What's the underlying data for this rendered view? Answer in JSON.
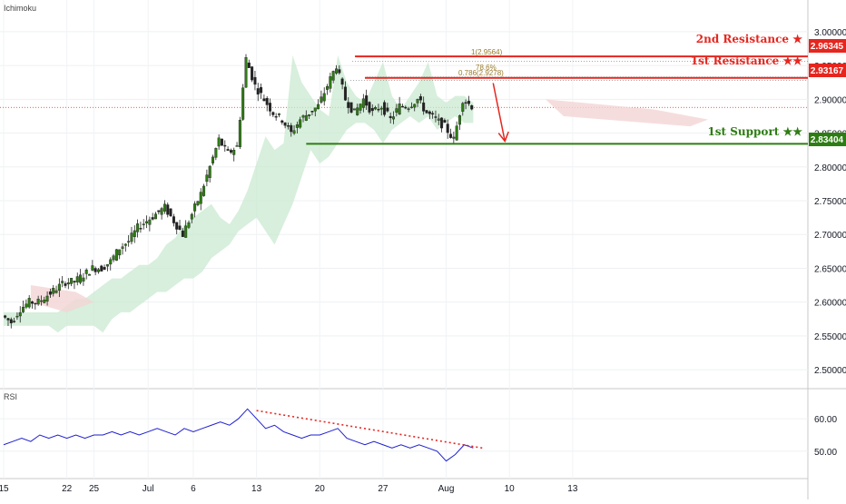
{
  "main_indicator": "Ichimoku",
  "rsi_indicator": "RSI",
  "colors": {
    "resistance": "#e5261f",
    "support": "#2e7d13",
    "candle": "#2e7d13",
    "rsi_line": "#1f1fcf",
    "cloud": "#c9ead0",
    "cloud_bear": "#f4d4d4"
  },
  "levels": {
    "r2": {
      "label": "2nd Resistance ★",
      "value_text": "2.96345",
      "value": 2.96345
    },
    "r1": {
      "label": "1st Resistance ★★",
      "value_text": "2.93167",
      "value": 2.93167
    },
    "s1": {
      "label": "1st Support ★★",
      "value_text": "2.83404",
      "value": 2.83404
    }
  },
  "fib": {
    "top_label": "1(2.9564)",
    "pct_label": "78.6%",
    "lower_label": "0.786(2.9278)"
  },
  "chart_data": [
    {
      "type": "candlestick",
      "title": "",
      "y_ticks": [
        "3.00000",
        "2.95000",
        "2.90000",
        "2.85000",
        "2.80000",
        "2.75000",
        "2.70000",
        "2.65000",
        "2.60000",
        "2.55000",
        "2.50000"
      ],
      "y_tick_values": [
        3.0,
        2.95,
        2.9,
        2.85,
        2.8,
        2.75,
        2.7,
        2.65,
        2.6,
        2.55,
        2.5
      ],
      "ylim": [
        2.48,
        3.02
      ],
      "x_ticks": [
        "15",
        "22",
        "25",
        "Jul",
        "6",
        "13",
        "20",
        "27",
        "Aug",
        "10",
        "13"
      ],
      "x_tick_days": [
        0,
        7,
        10,
        16,
        21,
        28,
        35,
        42,
        49,
        56,
        63
      ],
      "close_series": {
        "x_days": [
          0,
          1,
          2,
          3,
          4,
          5,
          6,
          7,
          8,
          9,
          10,
          11,
          12,
          13,
          14,
          15,
          16,
          17,
          18,
          19,
          20,
          21,
          22,
          23,
          24,
          25,
          26,
          27,
          28,
          29,
          30,
          31,
          32,
          33,
          34,
          35,
          36,
          37,
          38,
          39,
          40,
          41,
          42,
          43,
          44,
          45,
          46,
          47,
          48,
          49,
          50,
          51,
          52
        ],
        "y": [
          2.58,
          2.57,
          2.59,
          2.6,
          2.6,
          2.61,
          2.62,
          2.63,
          2.63,
          2.64,
          2.65,
          2.65,
          2.66,
          2.68,
          2.69,
          2.71,
          2.72,
          2.73,
          2.74,
          2.72,
          2.7,
          2.73,
          2.76,
          2.8,
          2.84,
          2.82,
          2.83,
          2.96,
          2.92,
          2.9,
          2.88,
          2.87,
          2.85,
          2.87,
          2.88,
          2.89,
          2.92,
          2.95,
          2.9,
          2.88,
          2.9,
          2.88,
          2.89,
          2.87,
          2.89,
          2.89,
          2.9,
          2.88,
          2.87,
          2.86,
          2.84,
          2.9,
          2.89
        ]
      }
    },
    {
      "type": "line",
      "title": "",
      "y_ticks": [
        "60.00",
        "50.00"
      ],
      "y_tick_values": [
        60,
        50
      ],
      "ylim": [
        43,
        67
      ],
      "series": {
        "x_days": [
          0,
          1,
          2,
          3,
          4,
          5,
          6,
          7,
          8,
          9,
          10,
          11,
          12,
          13,
          14,
          15,
          16,
          17,
          18,
          19,
          20,
          21,
          22,
          23,
          24,
          25,
          26,
          27,
          28,
          29,
          30,
          31,
          32,
          33,
          34,
          35,
          36,
          37,
          38,
          39,
          40,
          41,
          42,
          43,
          44,
          45,
          46,
          47,
          48,
          49,
          50,
          51,
          52
        ],
        "y": [
          52,
          53,
          54,
          53,
          55,
          54,
          55,
          54,
          55,
          54,
          55,
          55,
          56,
          55,
          56,
          55,
          56,
          57,
          56,
          55,
          57,
          56,
          57,
          58,
          59,
          58,
          60,
          63,
          60,
          57,
          58,
          56,
          55,
          54,
          55,
          55,
          56,
          57,
          54,
          53,
          52,
          53,
          52,
          51,
          52,
          51,
          52,
          51,
          50,
          47,
          49,
          52,
          51
        ]
      },
      "trendline": {
        "x_days": [
          28,
          53
        ],
        "y": [
          62.5,
          51
        ]
      }
    }
  ]
}
